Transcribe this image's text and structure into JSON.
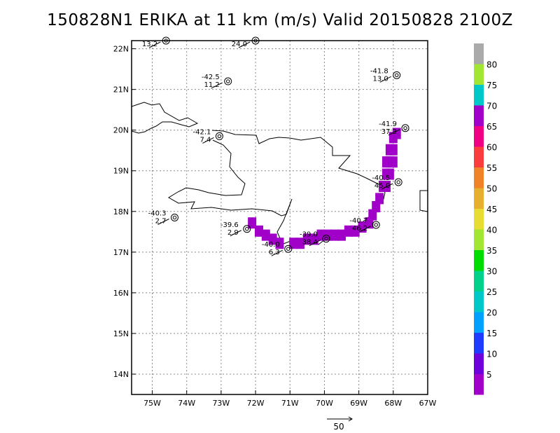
{
  "title": "150828N1 ERIKA at 11 km (m/s) Valid 20150828 2100Z",
  "reference_vector_label": "50",
  "chart_data": {
    "type": "map",
    "title": "150828N1 ERIKA at 11 km (m/s) Valid 20150828 2100Z",
    "xlim": [
      -75.6,
      -67
    ],
    "ylim": [
      13.5,
      22.2
    ],
    "x_ticks": [
      {
        "value": -75,
        "label": "75W"
      },
      {
        "value": -74,
        "label": "74W"
      },
      {
        "value": -73,
        "label": "73W"
      },
      {
        "value": -72,
        "label": "72W"
      },
      {
        "value": -71,
        "label": "71W"
      },
      {
        "value": -70,
        "label": "70W"
      },
      {
        "value": -69,
        "label": "69W"
      },
      {
        "value": -68,
        "label": "68W"
      },
      {
        "value": -67,
        "label": "67W"
      }
    ],
    "y_ticks": [
      {
        "value": 14,
        "label": "14N"
      },
      {
        "value": 15,
        "label": "15N"
      },
      {
        "value": 16,
        "label": "16N"
      },
      {
        "value": 17,
        "label": "17N"
      },
      {
        "value": 18,
        "label": "18N"
      },
      {
        "value": 19,
        "label": "19N"
      },
      {
        "value": 20,
        "label": "20N"
      },
      {
        "value": 21,
        "label": "21N"
      },
      {
        "value": 22,
        "label": "22N"
      }
    ],
    "grid": true,
    "colorbar": {
      "labels": [
        "5",
        "10",
        "15",
        "20",
        "25",
        "30",
        "35",
        "40",
        "45",
        "50",
        "55",
        "60",
        "65",
        "70",
        "75",
        "80"
      ],
      "colors": [
        "#a000c8",
        "#6e00dc",
        "#1e3cff",
        "#00a0ff",
        "#00c8c8",
        "#00d28c",
        "#00dc00",
        "#a0e632",
        "#e6dc32",
        "#e6af2d",
        "#f08228",
        "#fa3c3c",
        "#f00082",
        "#a000c8",
        "#00c8c8",
        "#a0e632",
        "#aaaaaa"
      ]
    },
    "stations": [
      {
        "lon": -74.6,
        "lat": 22.2,
        "temp": "",
        "speed": "13.2"
      },
      {
        "lon": -72.0,
        "lat": 22.2,
        "temp": "",
        "speed": "24.0"
      },
      {
        "lon": -72.8,
        "lat": 21.2,
        "temp": "-42.5",
        "speed": "11.2"
      },
      {
        "lon": -67.9,
        "lat": 21.35,
        "temp": "-41.8",
        "speed": "13.0"
      },
      {
        "lon": -73.05,
        "lat": 19.85,
        "temp": "-42.1",
        "speed": "7.4"
      },
      {
        "lon": -67.65,
        "lat": 20.05,
        "temp": "-41.9",
        "speed": "37.3"
      },
      {
        "lon": -67.85,
        "lat": 18.72,
        "temp": "-40.5",
        "speed": "45.0"
      },
      {
        "lon": -74.35,
        "lat": 17.85,
        "temp": "-40.3",
        "speed": "2.7"
      },
      {
        "lon": -72.25,
        "lat": 17.57,
        "temp": "-39.6",
        "speed": "2.9"
      },
      {
        "lon": -68.5,
        "lat": 17.67,
        "temp": "-40.7",
        "speed": "46.2"
      },
      {
        "lon": -71.05,
        "lat": 17.08,
        "temp": "-40.0",
        "speed": "6.3"
      },
      {
        "lon": -69.95,
        "lat": 17.33,
        "temp": "-39.0",
        "speed": "38.4"
      }
    ],
    "wind_swath": [
      {
        "lon": -68.0,
        "lat": 19.8,
        "value": 1
      },
      {
        "lon": -67.9,
        "lat": 19.9,
        "value": 1
      },
      {
        "lon": -68.1,
        "lat": 19.5,
        "value": 1
      },
      {
        "lon": -68.0,
        "lat": 19.5,
        "value": 1
      },
      {
        "lon": -68.2,
        "lat": 19.2,
        "value": 1
      },
      {
        "lon": -68.1,
        "lat": 19.2,
        "value": 1
      },
      {
        "lon": -68.0,
        "lat": 19.2,
        "value": 1
      },
      {
        "lon": -68.2,
        "lat": 18.9,
        "value": 1
      },
      {
        "lon": -68.1,
        "lat": 18.9,
        "value": 1
      },
      {
        "lon": -68.2,
        "lat": 18.6,
        "value": 1
      },
      {
        "lon": -68.3,
        "lat": 18.6,
        "value": 1
      },
      {
        "lon": -68.4,
        "lat": 18.3,
        "value": 1
      },
      {
        "lon": -68.5,
        "lat": 18.1,
        "value": 1
      },
      {
        "lon": -68.6,
        "lat": 17.9,
        "value": 1
      },
      {
        "lon": -68.7,
        "lat": 17.7,
        "value": 1
      },
      {
        "lon": -68.9,
        "lat": 17.6,
        "value": 1
      },
      {
        "lon": -69.1,
        "lat": 17.5,
        "value": 1
      },
      {
        "lon": -69.3,
        "lat": 17.5,
        "value": 1
      },
      {
        "lon": -69.5,
        "lat": 17.4,
        "value": 1
      },
      {
        "lon": -69.7,
        "lat": 17.4,
        "value": 1
      },
      {
        "lon": -69.9,
        "lat": 17.4,
        "value": 1
      },
      {
        "lon": -70.1,
        "lat": 17.4,
        "value": 1
      },
      {
        "lon": -70.3,
        "lat": 17.3,
        "value": 1
      },
      {
        "lon": -70.5,
        "lat": 17.3,
        "value": 1
      },
      {
        "lon": -70.7,
        "lat": 17.2,
        "value": 1
      },
      {
        "lon": -70.9,
        "lat": 17.2,
        "value": 1
      },
      {
        "lon": -71.3,
        "lat": 17.2,
        "value": 1
      },
      {
        "lon": -71.5,
        "lat": 17.3,
        "value": 1
      },
      {
        "lon": -71.7,
        "lat": 17.4,
        "value": 1
      },
      {
        "lon": -71.9,
        "lat": 17.5,
        "value": 1
      },
      {
        "lon": -72.1,
        "lat": 17.7,
        "value": 1
      }
    ]
  }
}
